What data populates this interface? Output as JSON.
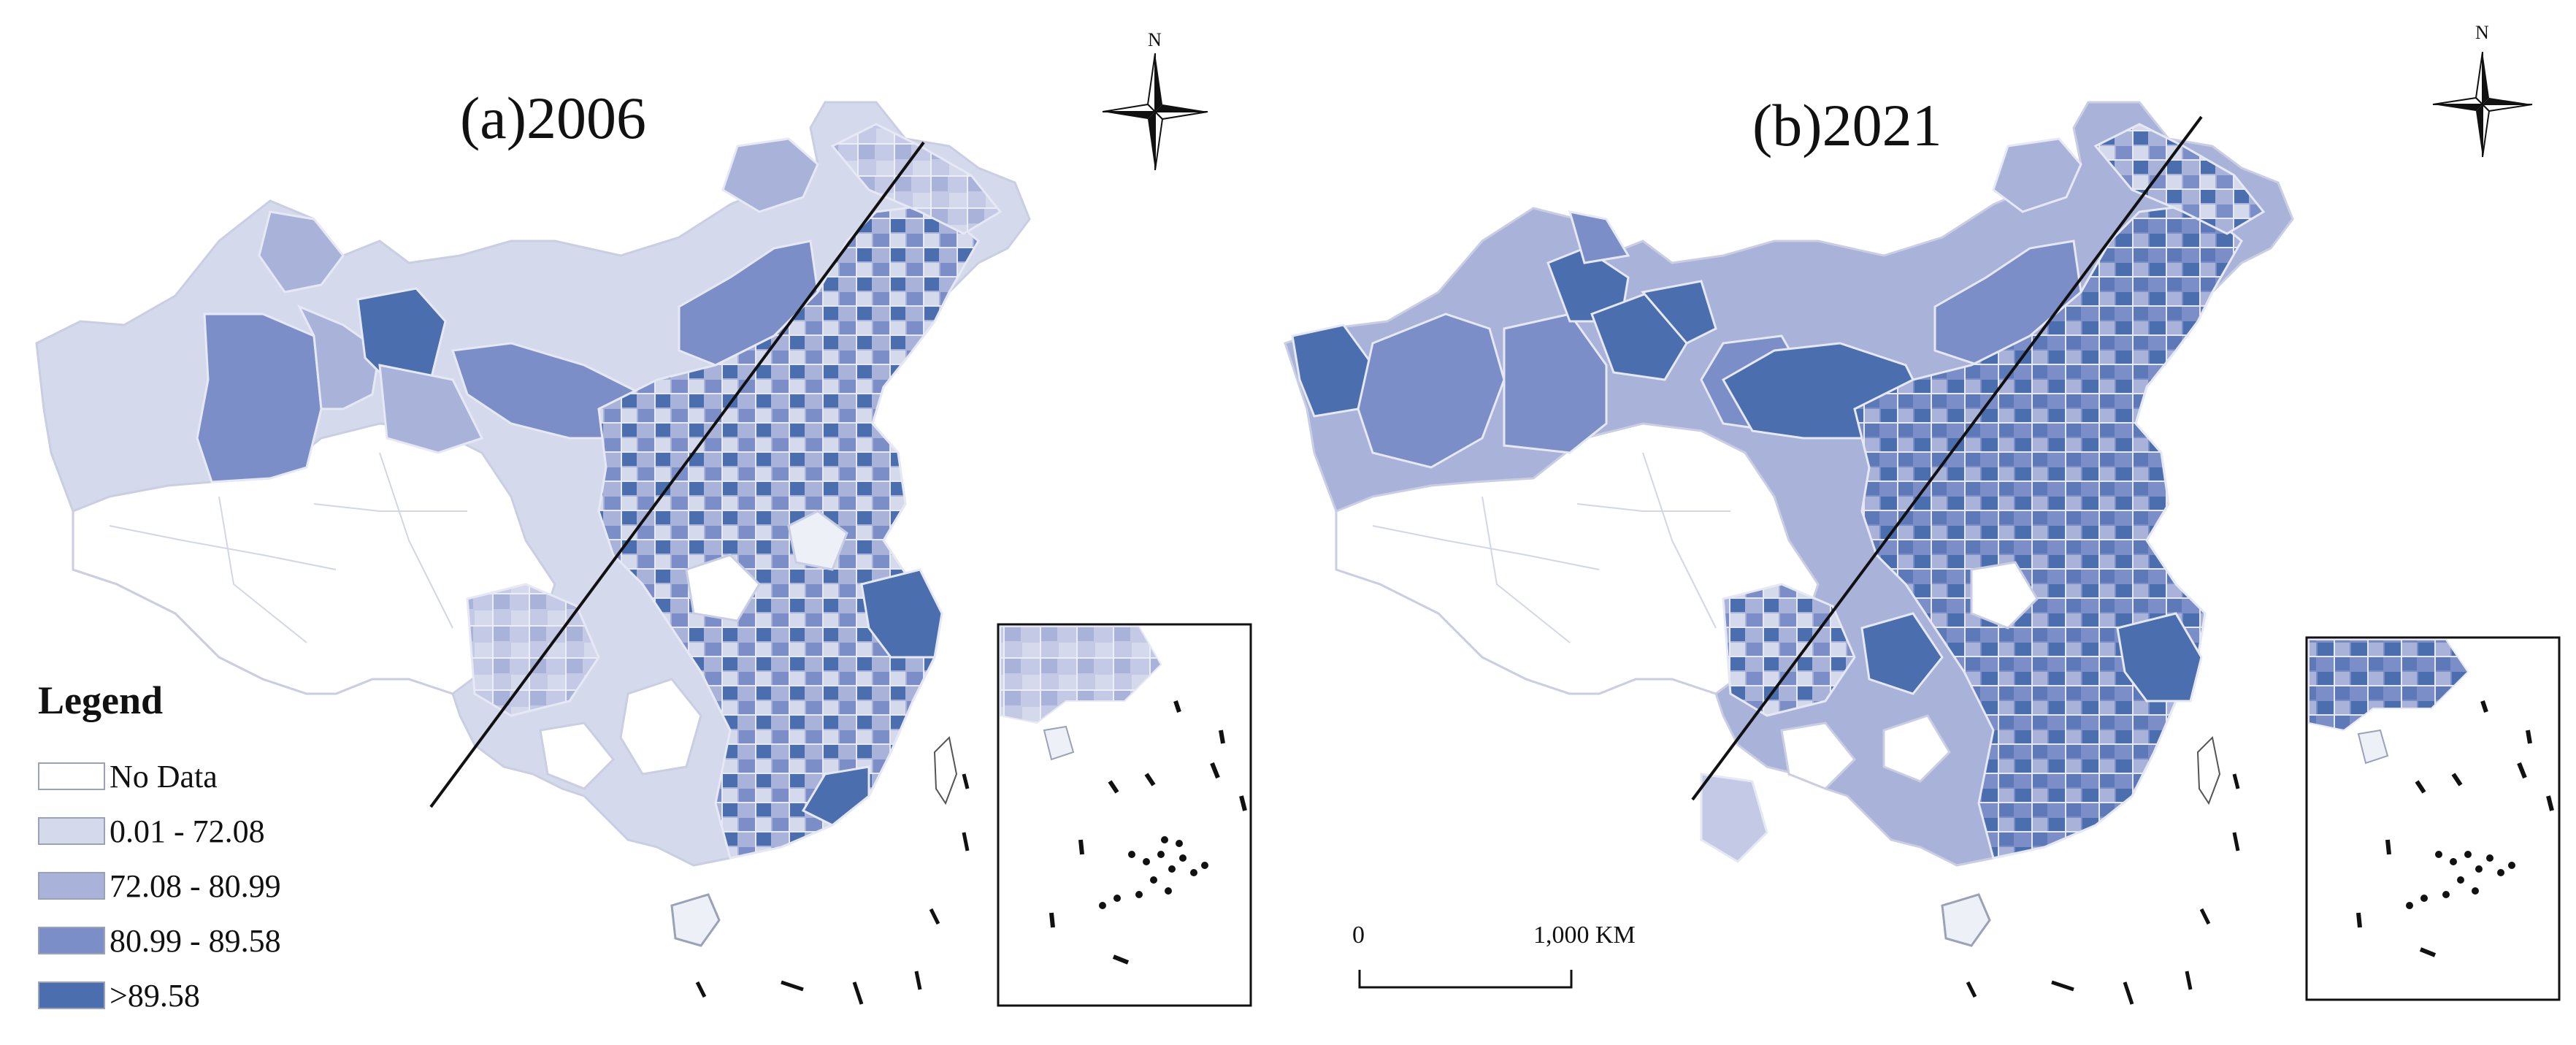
{
  "panels": [
    {
      "title": "(a)2006"
    },
    {
      "title": "(b)2021"
    }
  ],
  "legend": {
    "title": "Legend",
    "items": [
      {
        "label": "No Data",
        "color": "#ffffff"
      },
      {
        "label": "0.01 - 72.08",
        "color": "#d5d9ec"
      },
      {
        "label": "72.08 - 80.99",
        "color": "#a9b3da"
      },
      {
        "label": "80.99 - 89.58",
        "color": "#7c8ec8"
      },
      {
        "label": ">89.58",
        "color": "#4b6eae"
      }
    ]
  },
  "north_arrow": {
    "label": "N"
  },
  "scale_bar": {
    "start_label": "0",
    "end_label": "1,000  KM"
  }
}
